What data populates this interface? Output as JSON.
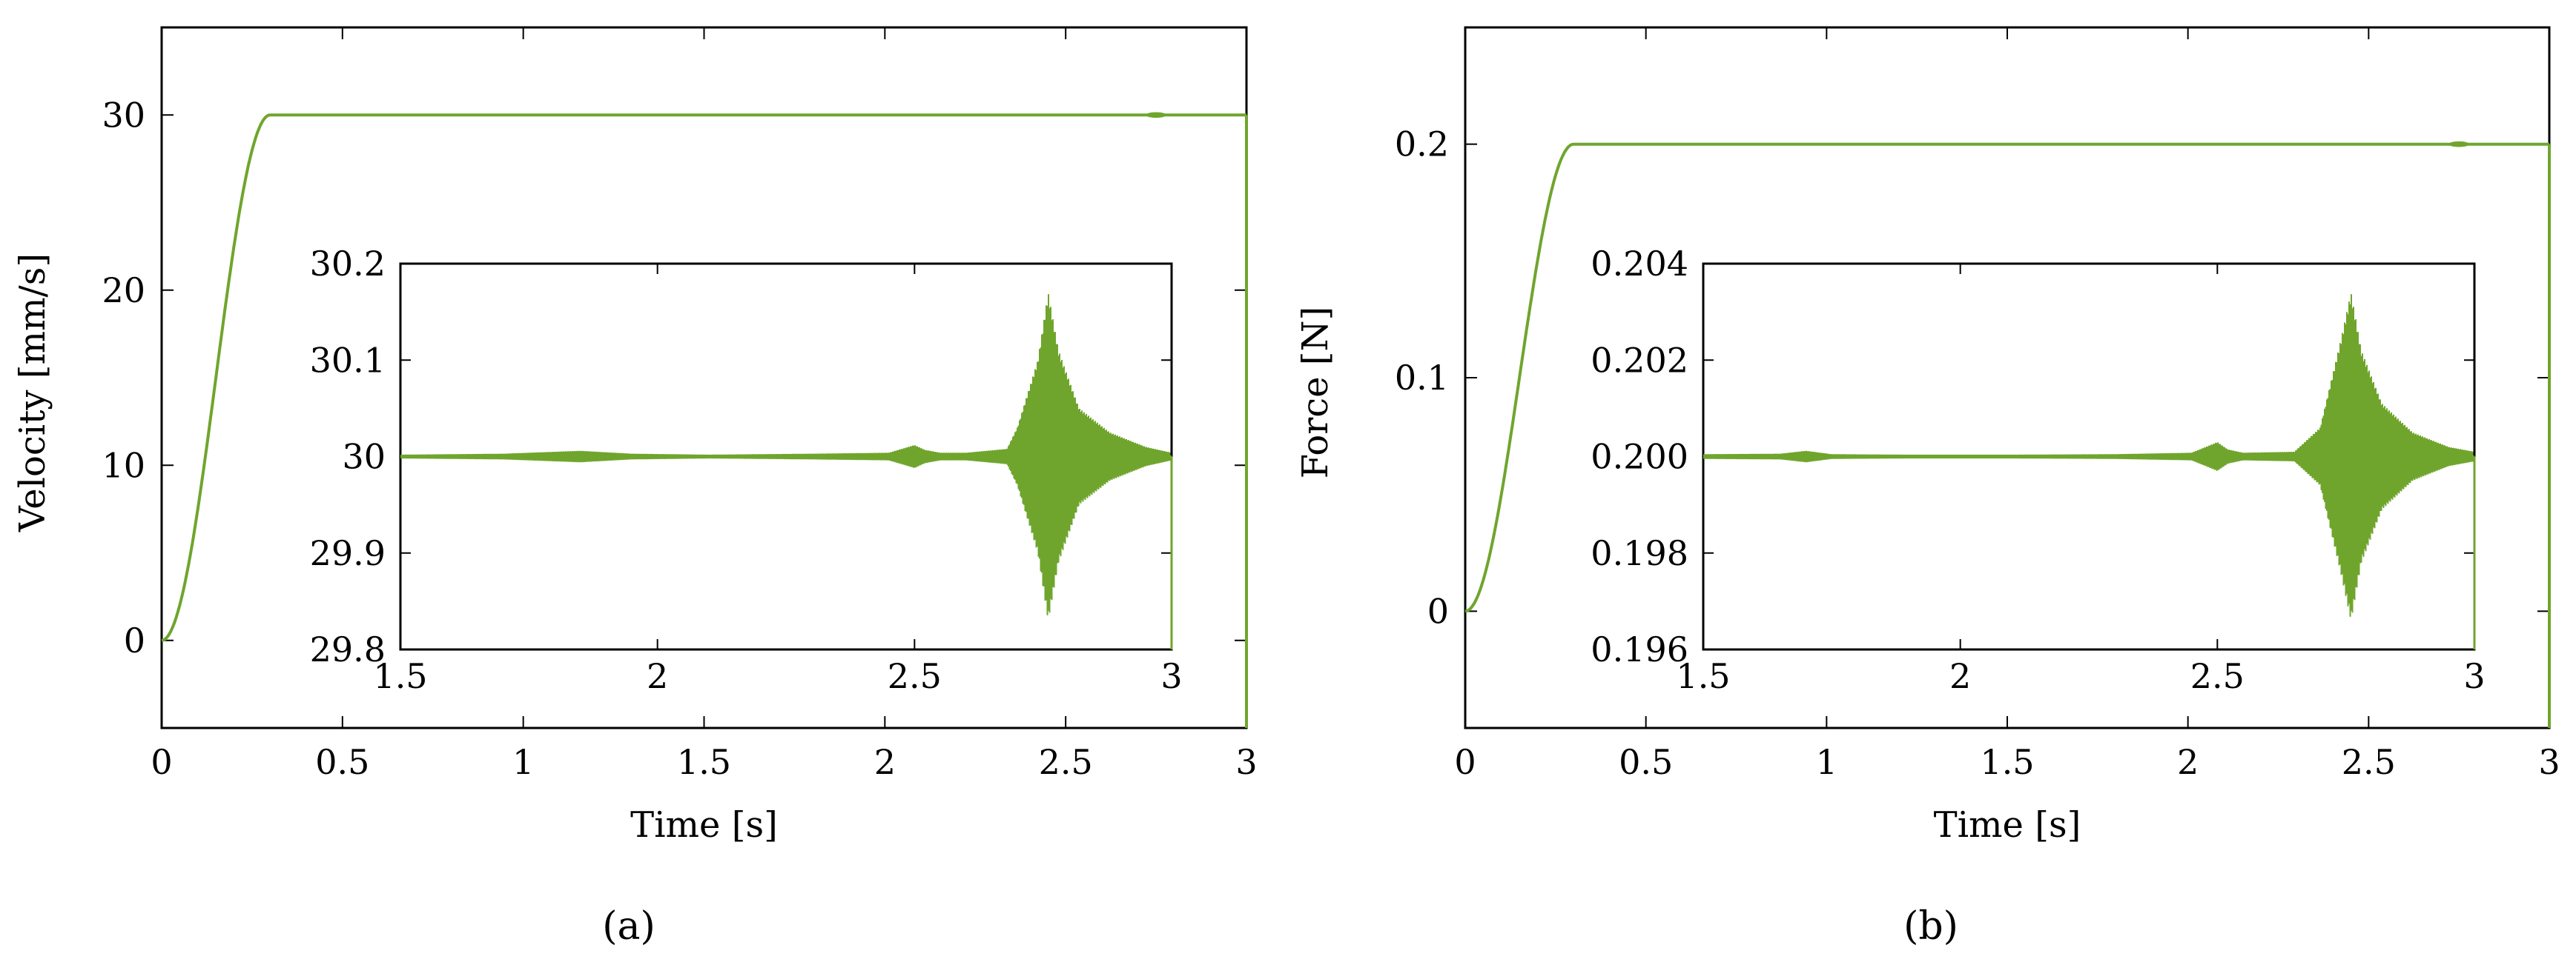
{
  "colors": {
    "series": "#6fa52d",
    "axis": "#000000"
  },
  "chart_data": [
    {
      "type": "line",
      "panel_label": "(a)",
      "xlabel": "Time [s]",
      "ylabel": "Velocity [mm/s]",
      "xlim": [
        0,
        3
      ],
      "ylim": [
        -5,
        35
      ],
      "xticks": [
        0,
        0.5,
        1,
        1.5,
        2,
        2.5,
        3
      ],
      "xtick_labels": [
        "0",
        "0.5",
        "1",
        "1.5",
        "2",
        "2.5",
        "3"
      ],
      "yticks": [
        0,
        10,
        20,
        30
      ],
      "ytick_labels": [
        "0",
        "10",
        "20",
        "30"
      ],
      "grid": false,
      "series": [
        {
          "x": [
            0,
            0.03,
            0.06,
            0.1,
            0.15,
            0.2,
            0.25,
            0.28,
            0.3,
            1.0,
            2.0,
            2.7,
            2.75,
            2.8,
            3.0
          ],
          "y": [
            0,
            0.8,
            3,
            8,
            15,
            22,
            27.5,
            29.5,
            30,
            30,
            30,
            30,
            30.05,
            30,
            30
          ]
        }
      ],
      "inset": {
        "xlim": [
          1.5,
          3
        ],
        "ylim": [
          29.8,
          30.2
        ],
        "xticks": [
          1.5,
          2,
          2.5,
          3
        ],
        "xtick_labels": [
          "1.5",
          "2",
          "2.5",
          "3"
        ],
        "yticks": [
          29.8,
          29.9,
          30,
          30.1,
          30.2
        ],
        "ytick_labels": [
          "29.8",
          "29.9",
          "30",
          "30.1",
          "30.2"
        ],
        "baseline": 30,
        "oscillation_envelope": {
          "x": [
            1.5,
            1.7,
            1.85,
            1.95,
            2.1,
            2.3,
            2.45,
            2.5,
            2.52,
            2.55,
            2.6,
            2.68,
            2.7,
            2.72,
            2.74,
            2.76,
            2.78,
            2.82,
            2.88,
            2.95,
            3.0
          ],
          "amplitude": [
            0.002,
            0.003,
            0.006,
            0.003,
            0.002,
            0.003,
            0.004,
            0.012,
            0.007,
            0.004,
            0.004,
            0.008,
            0.03,
            0.065,
            0.1,
            0.17,
            0.11,
            0.05,
            0.025,
            0.01,
            0.004
          ]
        }
      }
    },
    {
      "type": "line",
      "panel_label": "(b)",
      "xlabel": "Time [s]",
      "ylabel": "Force [N]",
      "xlim": [
        0,
        3
      ],
      "ylim": [
        -0.05,
        0.25
      ],
      "xticks": [
        0,
        0.5,
        1,
        1.5,
        2,
        2.5,
        3
      ],
      "xtick_labels": [
        "0",
        "0.5",
        "1",
        "1.5",
        "2",
        "2.5",
        "3"
      ],
      "yticks": [
        0,
        0.1,
        0.2
      ],
      "ytick_labels": [
        "0",
        "0.1",
        "0.2"
      ],
      "grid": false,
      "series": [
        {
          "x": [
            0,
            0.03,
            0.06,
            0.1,
            0.15,
            0.2,
            0.25,
            0.28,
            0.3,
            1.0,
            2.0,
            2.7,
            2.75,
            2.8,
            3.0
          ],
          "y": [
            0,
            0.005,
            0.02,
            0.053,
            0.1,
            0.147,
            0.183,
            0.197,
            0.2,
            0.2,
            0.2,
            0.2,
            0.2005,
            0.2,
            0.2
          ]
        }
      ],
      "inset": {
        "xlim": [
          1.5,
          3
        ],
        "ylim": [
          0.196,
          0.204
        ],
        "xticks": [
          1.5,
          2,
          2.5,
          3
        ],
        "xtick_labels": [
          "1.5",
          "2",
          "2.5",
          "3"
        ],
        "yticks": [
          0.196,
          0.198,
          0.2,
          0.202,
          0.204
        ],
        "ytick_labels": [
          "0.196",
          "0.198",
          "0.200",
          "0.202",
          "0.204"
        ],
        "baseline": 0.2,
        "oscillation_envelope": {
          "x": [
            1.5,
            1.65,
            1.7,
            1.75,
            1.9,
            2.1,
            2.3,
            2.45,
            2.5,
            2.52,
            2.55,
            2.65,
            2.7,
            2.72,
            2.74,
            2.76,
            2.78,
            2.82,
            2.88,
            2.95,
            3.0
          ],
          "amplitude": [
            5e-05,
            6e-05,
            0.00012,
            5e-05,
            4e-05,
            4e-05,
            5e-05,
            8e-05,
            0.0003,
            0.00015,
            8e-05,
            0.0001,
            0.0006,
            0.0015,
            0.0024,
            0.0034,
            0.0022,
            0.0011,
            0.0005,
            0.0002,
            0.0001
          ]
        }
      }
    }
  ]
}
